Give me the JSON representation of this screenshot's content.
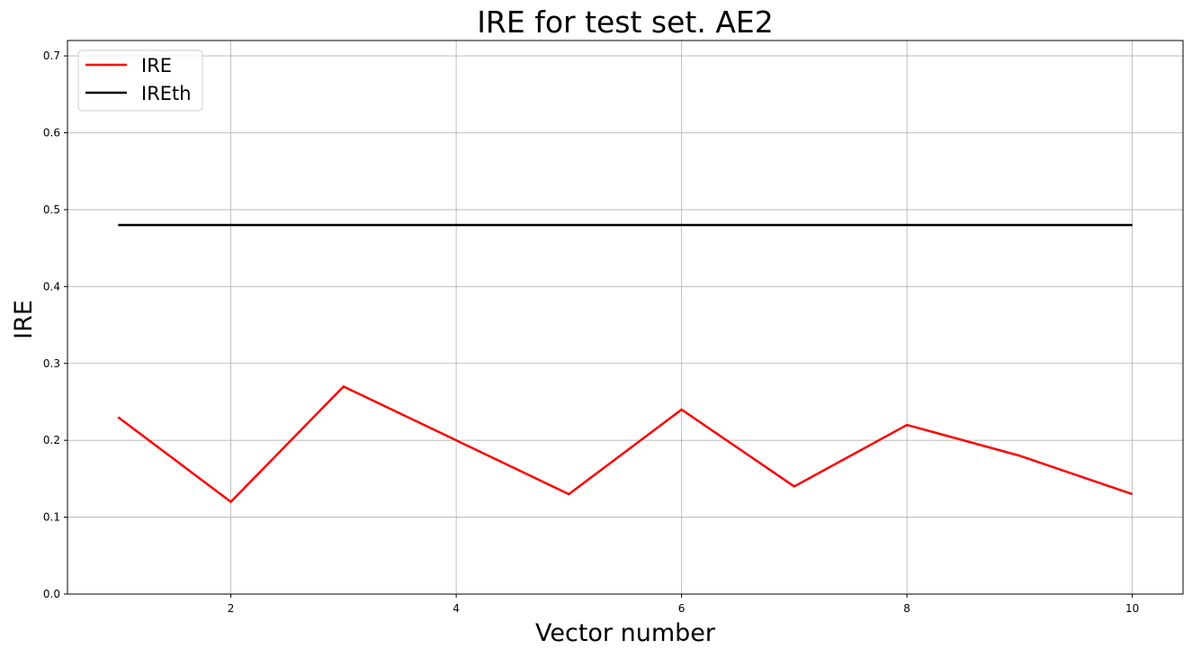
{
  "chart_data": {
    "type": "line",
    "title": "IRE for test set. AE2",
    "xlabel": "Vector number",
    "ylabel": "IRE",
    "xlim": [
      0.55,
      10.45
    ],
    "ylim": [
      0,
      0.72
    ],
    "xticks": [
      2,
      4,
      6,
      8,
      10
    ],
    "yticks": [
      0.0,
      0.1,
      0.2,
      0.3,
      0.4,
      0.5,
      0.6,
      0.7
    ],
    "grid": true,
    "legend_position": "top-left",
    "x": [
      1,
      2,
      3,
      4,
      5,
      6,
      7,
      8,
      9,
      10
    ],
    "series": [
      {
        "name": "IRE",
        "color": "#ff0000",
        "values": [
          0.23,
          0.12,
          0.27,
          0.2,
          0.13,
          0.24,
          0.14,
          0.22,
          0.18,
          0.13
        ]
      },
      {
        "name": "IREth",
        "color": "#000000",
        "values": [
          0.48,
          0.48,
          0.48,
          0.48,
          0.48,
          0.48,
          0.48,
          0.48,
          0.48,
          0.48
        ]
      }
    ]
  }
}
